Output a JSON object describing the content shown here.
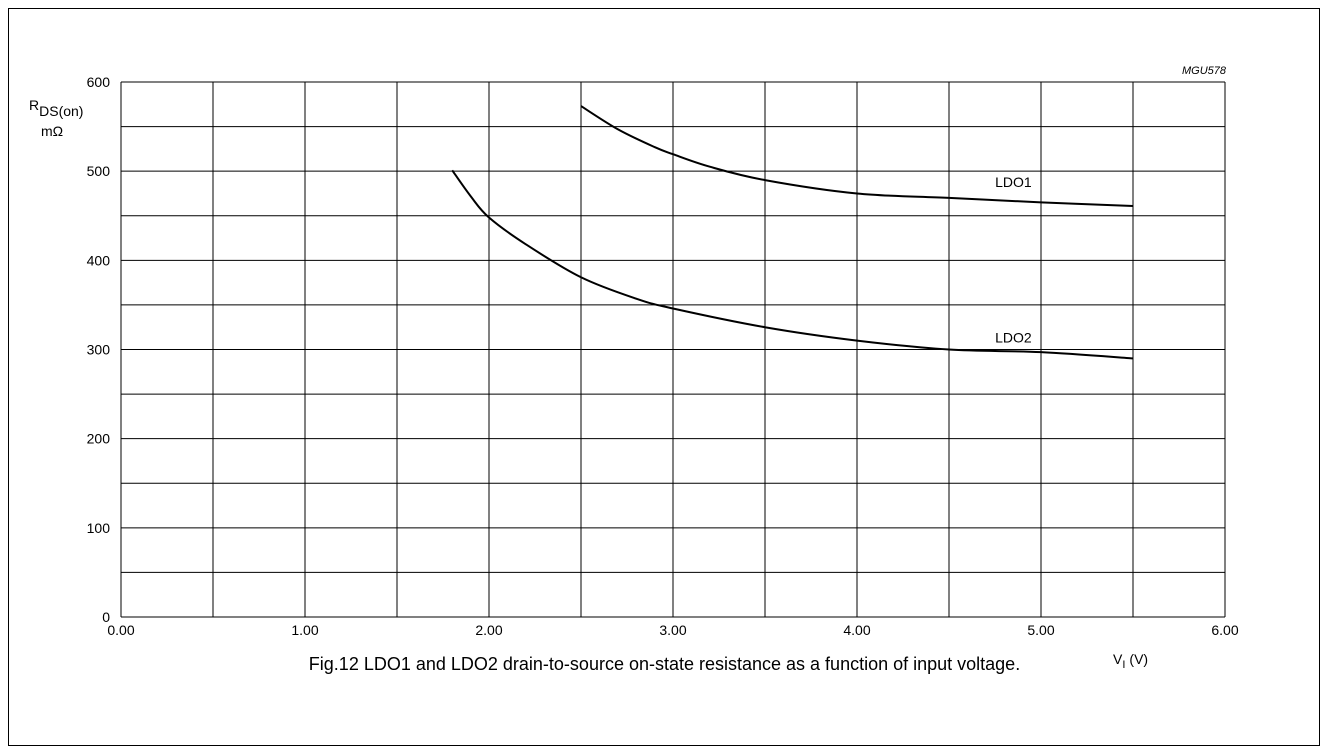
{
  "figure_code": "MGU578",
  "caption": "Fig.12  LDO1 and LDO2 drain-to-source on-state resistance as a function of input voltage.",
  "chart_data": {
    "type": "line",
    "title": "",
    "ylabel_main": "R",
    "ylabel_sub": "DS(on)",
    "yunit": "mΩ",
    "xlabel_main": "V",
    "xlabel_sub": "I",
    "xunit": "(V)",
    "xlim": [
      0,
      6
    ],
    "ylim": [
      0,
      600
    ],
    "x_grid_step": 0.5,
    "y_grid_step": 50,
    "grid": true,
    "x_ticks": [
      0,
      1,
      2,
      3,
      4,
      5,
      6
    ],
    "x_tick_labels": [
      "0.00",
      "1.00",
      "2.00",
      "3.00",
      "4.00",
      "5.00",
      "6.00"
    ],
    "y_ticks": [
      0,
      100,
      200,
      300,
      400,
      500,
      600
    ],
    "y_tick_labels": [
      "0",
      "100",
      "200",
      "300",
      "400",
      "500",
      "600"
    ],
    "series": [
      {
        "name": "LDO1",
        "label_at": [
          4.85,
          482
        ],
        "x": [
          2.5,
          2.7,
          2.9,
          3.0,
          3.2,
          3.5,
          4.0,
          4.5,
          5.0,
          5.5
        ],
        "y": [
          573,
          547,
          527,
          519,
          505,
          490,
          475,
          470,
          465,
          461
        ]
      },
      {
        "name": "LDO2",
        "label_at": [
          4.85,
          308
        ],
        "x": [
          1.8,
          1.9,
          2.0,
          2.2,
          2.5,
          2.8,
          3.0,
          3.5,
          4.0,
          4.5,
          5.0,
          5.5
        ],
        "y": [
          501,
          472,
          448,
          418,
          381,
          357,
          346,
          325,
          310,
          300,
          297,
          290
        ]
      }
    ]
  }
}
